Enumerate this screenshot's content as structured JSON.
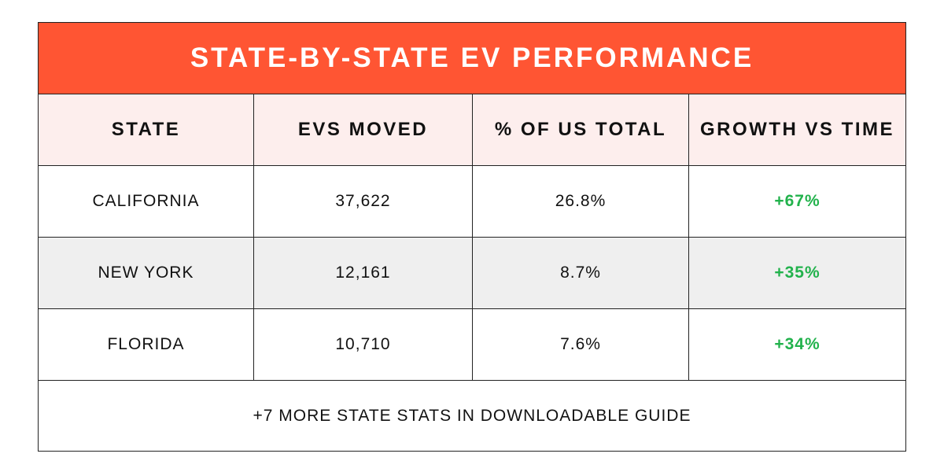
{
  "title": "STATE-BY-STATE EV PERFORMANCE",
  "chart_data": {
    "type": "table",
    "columns": [
      "STATE",
      "EVS MOVED",
      "% OF US TOTAL",
      "GROWTH VS TIME"
    ],
    "rows": [
      [
        "CALIFORNIA",
        "37,622",
        "26.8%",
        "+67%"
      ],
      [
        "NEW YORK",
        "12,161",
        "8.7%",
        "+35%"
      ],
      [
        "FLORIDA",
        "10,710",
        "7.6%",
        "+34%"
      ]
    ]
  },
  "footer": "+7 MORE STATE STATS IN DOWNLOADABLE GUIDE",
  "colors": {
    "title_bg": "#ff5533",
    "header_bg": "#fdeeed",
    "alt_row_bg": "#efefef",
    "growth_text": "#22b24c"
  }
}
